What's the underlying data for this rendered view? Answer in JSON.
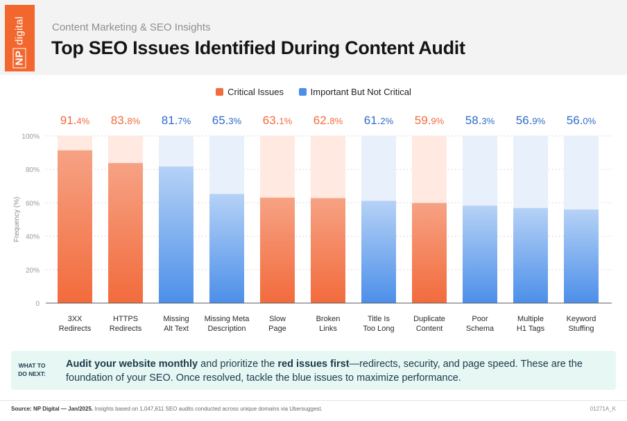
{
  "header": {
    "logo_text": "NP digital",
    "logo_np": "NP",
    "logo_rest": "digital",
    "subtitle": "Content Marketing & SEO Insights",
    "title": "Top SEO Issues Identified During Content Audit"
  },
  "colors": {
    "critical": "#f26b3c",
    "critical_light": "#ffe9e1",
    "important": "#4c8fe9",
    "important_light": "#e8f0fb",
    "accent": "#f2672e"
  },
  "legend": {
    "critical_label": "Critical Issues",
    "important_label": "Important But Not Critical"
  },
  "chart_data": {
    "type": "bar",
    "ylabel": "Frequency (%)",
    "ylim": [
      0,
      100
    ],
    "yticks": [
      "0",
      "20%",
      "40%",
      "60%",
      "80%",
      "100%"
    ],
    "grid": true,
    "legend_placement": "top-center",
    "categories": [
      [
        "3XX",
        "Redirects"
      ],
      [
        "HTTPS",
        "Redirects"
      ],
      [
        "Missing",
        "Alt Text"
      ],
      [
        "Missing Meta",
        "Description"
      ],
      [
        "Slow",
        "Page"
      ],
      [
        "Broken",
        "Links"
      ],
      [
        "Title Is",
        "Too Long"
      ],
      [
        "Duplicate",
        "Content"
      ],
      [
        "Poor",
        "Schema"
      ],
      [
        "Multiple",
        "H1 Tags"
      ],
      [
        "Keyword",
        "Stuffing"
      ]
    ],
    "values": [
      91.4,
      83.8,
      81.7,
      65.3,
      63.1,
      62.8,
      61.2,
      59.9,
      58.3,
      56.9,
      56.0
    ],
    "value_labels": [
      [
        "91.",
        "4%"
      ],
      [
        "83.",
        "8%"
      ],
      [
        "81.",
        "7%"
      ],
      [
        "65.",
        "3%"
      ],
      [
        "63.",
        "1%"
      ],
      [
        "62.",
        "8%"
      ],
      [
        "61.",
        "2%"
      ],
      [
        "59.",
        "9%"
      ],
      [
        "58.",
        "3%"
      ],
      [
        "56.",
        "9%"
      ],
      [
        "56.",
        "0%"
      ]
    ],
    "groups": [
      "critical",
      "critical",
      "important",
      "important",
      "critical",
      "critical",
      "important",
      "critical",
      "important",
      "important",
      "important"
    ]
  },
  "callout": {
    "label_line1": "WHAT TO",
    "label_line2": "DO NEXT:",
    "bold1": "Audit your website monthly",
    "text1": " and prioritize the ",
    "bold2": "red issues first",
    "text2": "—redirects, security, and page speed. These are the foundation of your SEO. Once resolved, tackle the blue issues to maximize performance."
  },
  "footer": {
    "source_bold": "Source: NP Digital — Jan/2025.",
    "source_text": " Insights based on 1,047,611 SEO audits conducted across unique domains via Ubersuggest.",
    "code": "01271A_K"
  }
}
